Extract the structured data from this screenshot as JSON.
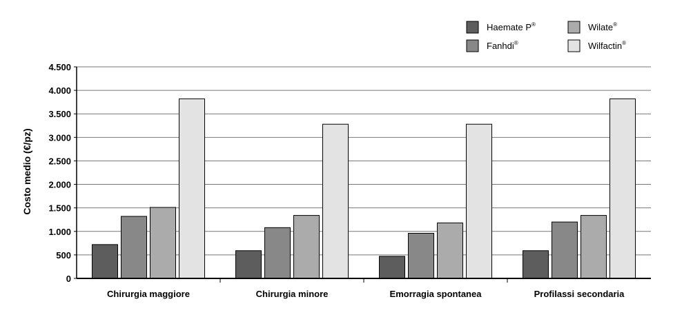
{
  "chart_data": {
    "type": "bar",
    "ylabel": "Costo medio (€/pz)",
    "xlabel": "",
    "ylim": [
      0,
      4500
    ],
    "y_ticks": [
      0,
      500,
      1000,
      1500,
      2000,
      2500,
      3000,
      3500,
      4000,
      4500
    ],
    "y_tick_labels": [
      "0",
      "500",
      "1.000",
      "1.500",
      "2.000",
      "2.500",
      "3.000",
      "3.500",
      "4.000",
      "4.500"
    ],
    "grid": "horizontal",
    "legend_position": "top-right",
    "categories": [
      "Chirurgia maggiore",
      "Chirurgia minore",
      "Emorragia spontanea",
      "Profilassi secondaria"
    ],
    "series": [
      {
        "name": "Haemate P",
        "sup": "®",
        "color": "#5d5d5d",
        "values": [
          720,
          590,
          470,
          590
        ]
      },
      {
        "name": "Fanhdi",
        "sup": "®",
        "color": "#888888",
        "values": [
          1320,
          1080,
          960,
          1200
        ]
      },
      {
        "name": "Wilate",
        "sup": "®",
        "color": "#ababab",
        "values": [
          1510,
          1340,
          1180,
          1340
        ]
      },
      {
        "name": "Wilfactin",
        "sup": "®",
        "color": "#e3e3e3",
        "values": [
          3820,
          3280,
          3280,
          3820
        ]
      }
    ]
  }
}
